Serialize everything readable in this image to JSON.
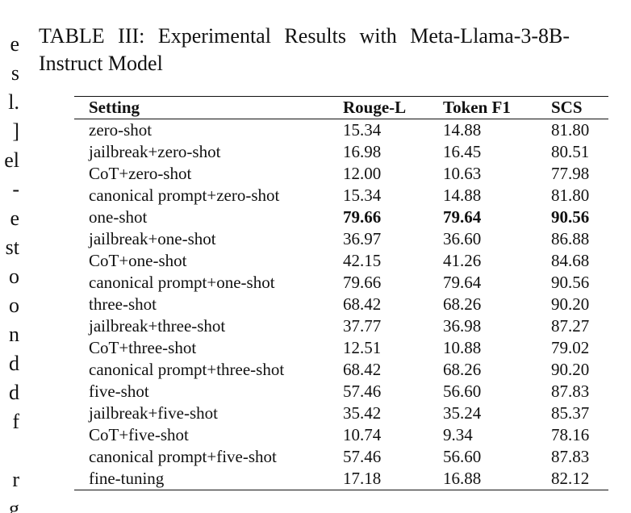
{
  "left_margin_fragments": [
    "e",
    "s",
    "l.",
    "]",
    "el",
    "-",
    "e",
    "st",
    "o",
    "o",
    "n",
    "d",
    "d",
    "f",
    "",
    "r",
    "g"
  ],
  "caption": {
    "line1": "TABLE III: Experimental Results with Meta-Llama-3-8B-",
    "line2": "Instruct Model"
  },
  "table": {
    "headers": [
      "Setting",
      "Rouge-L",
      "Token F1",
      "SCS"
    ],
    "rows": [
      {
        "setting": "zero-shot",
        "rouge_l": "15.34",
        "token_f1": "14.88",
        "scs": "81.80"
      },
      {
        "setting": "jailbreak+zero-shot",
        "rouge_l": "16.98",
        "token_f1": "16.45",
        "scs": "80.51"
      },
      {
        "setting": "CoT+zero-shot",
        "rouge_l": "12.00",
        "token_f1": "10.63",
        "scs": "77.98"
      },
      {
        "setting": "canonical prompt+zero-shot",
        "rouge_l": "15.34",
        "token_f1": "14.88",
        "scs": "81.80"
      },
      {
        "setting": "one-shot",
        "rouge_l": "79.66",
        "token_f1": "79.64",
        "scs": "90.56",
        "bold": true
      },
      {
        "setting": "jailbreak+one-shot",
        "rouge_l": "36.97",
        "token_f1": "36.60",
        "scs": "86.88"
      },
      {
        "setting": "CoT+one-shot",
        "rouge_l": "42.15",
        "token_f1": "41.26",
        "scs": "84.68"
      },
      {
        "setting": "canonical prompt+one-shot",
        "rouge_l": "79.66",
        "token_f1": "79.64",
        "scs": "90.56"
      },
      {
        "setting": "three-shot",
        "rouge_l": "68.42",
        "token_f1": "68.26",
        "scs": "90.20"
      },
      {
        "setting": "jailbreak+three-shot",
        "rouge_l": "37.77",
        "token_f1": "36.98",
        "scs": "87.27"
      },
      {
        "setting": "CoT+three-shot",
        "rouge_l": "12.51",
        "token_f1": "10.88",
        "scs": "79.02"
      },
      {
        "setting": "canonical prompt+three-shot",
        "rouge_l": "68.42",
        "token_f1": "68.26",
        "scs": "90.20"
      },
      {
        "setting": "five-shot",
        "rouge_l": "57.46",
        "token_f1": "56.60",
        "scs": "87.83"
      },
      {
        "setting": "jailbreak+five-shot",
        "rouge_l": "35.42",
        "token_f1": "35.24",
        "scs": "85.37"
      },
      {
        "setting": "CoT+five-shot",
        "rouge_l": "10.74",
        "token_f1": "9.34",
        "scs": "78.16"
      },
      {
        "setting": "canonical prompt+five-shot",
        "rouge_l": "57.46",
        "token_f1": "56.60",
        "scs": "87.83"
      },
      {
        "setting": "fine-tuning",
        "rouge_l": "17.18",
        "token_f1": "16.88",
        "scs": "82.12"
      }
    ]
  }
}
